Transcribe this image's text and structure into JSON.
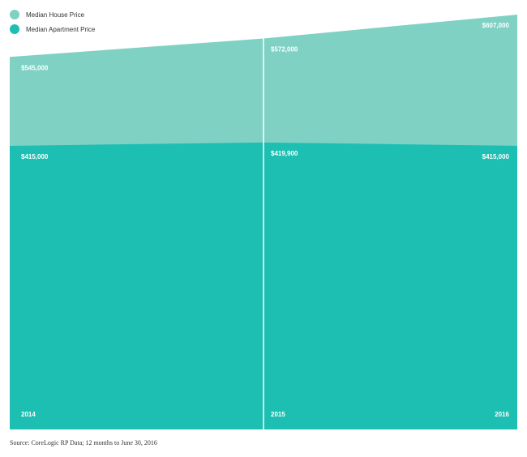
{
  "colors": {
    "house": "#7fd1c4",
    "apartment": "#1dbfb2",
    "divider": "#ffffff"
  },
  "source": "Source: CoreLogic RP Data; 12 months to June 30, 2016",
  "chart_data": {
    "type": "area",
    "x": [
      "2014",
      "2015",
      "2016"
    ],
    "series": [
      {
        "name": "Median House Price",
        "values": [
          545000,
          572000,
          607000
        ],
        "labels": [
          "$545,000",
          "$572,000",
          "$607,000"
        ]
      },
      {
        "name": "Median Apartment Price",
        "values": [
          415000,
          419900,
          415000
        ],
        "labels": [
          "$415,000",
          "$419,900",
          "$415,000"
        ]
      }
    ],
    "legend": "top-left",
    "grid": false,
    "ylim": [
      0,
      607000
    ]
  }
}
